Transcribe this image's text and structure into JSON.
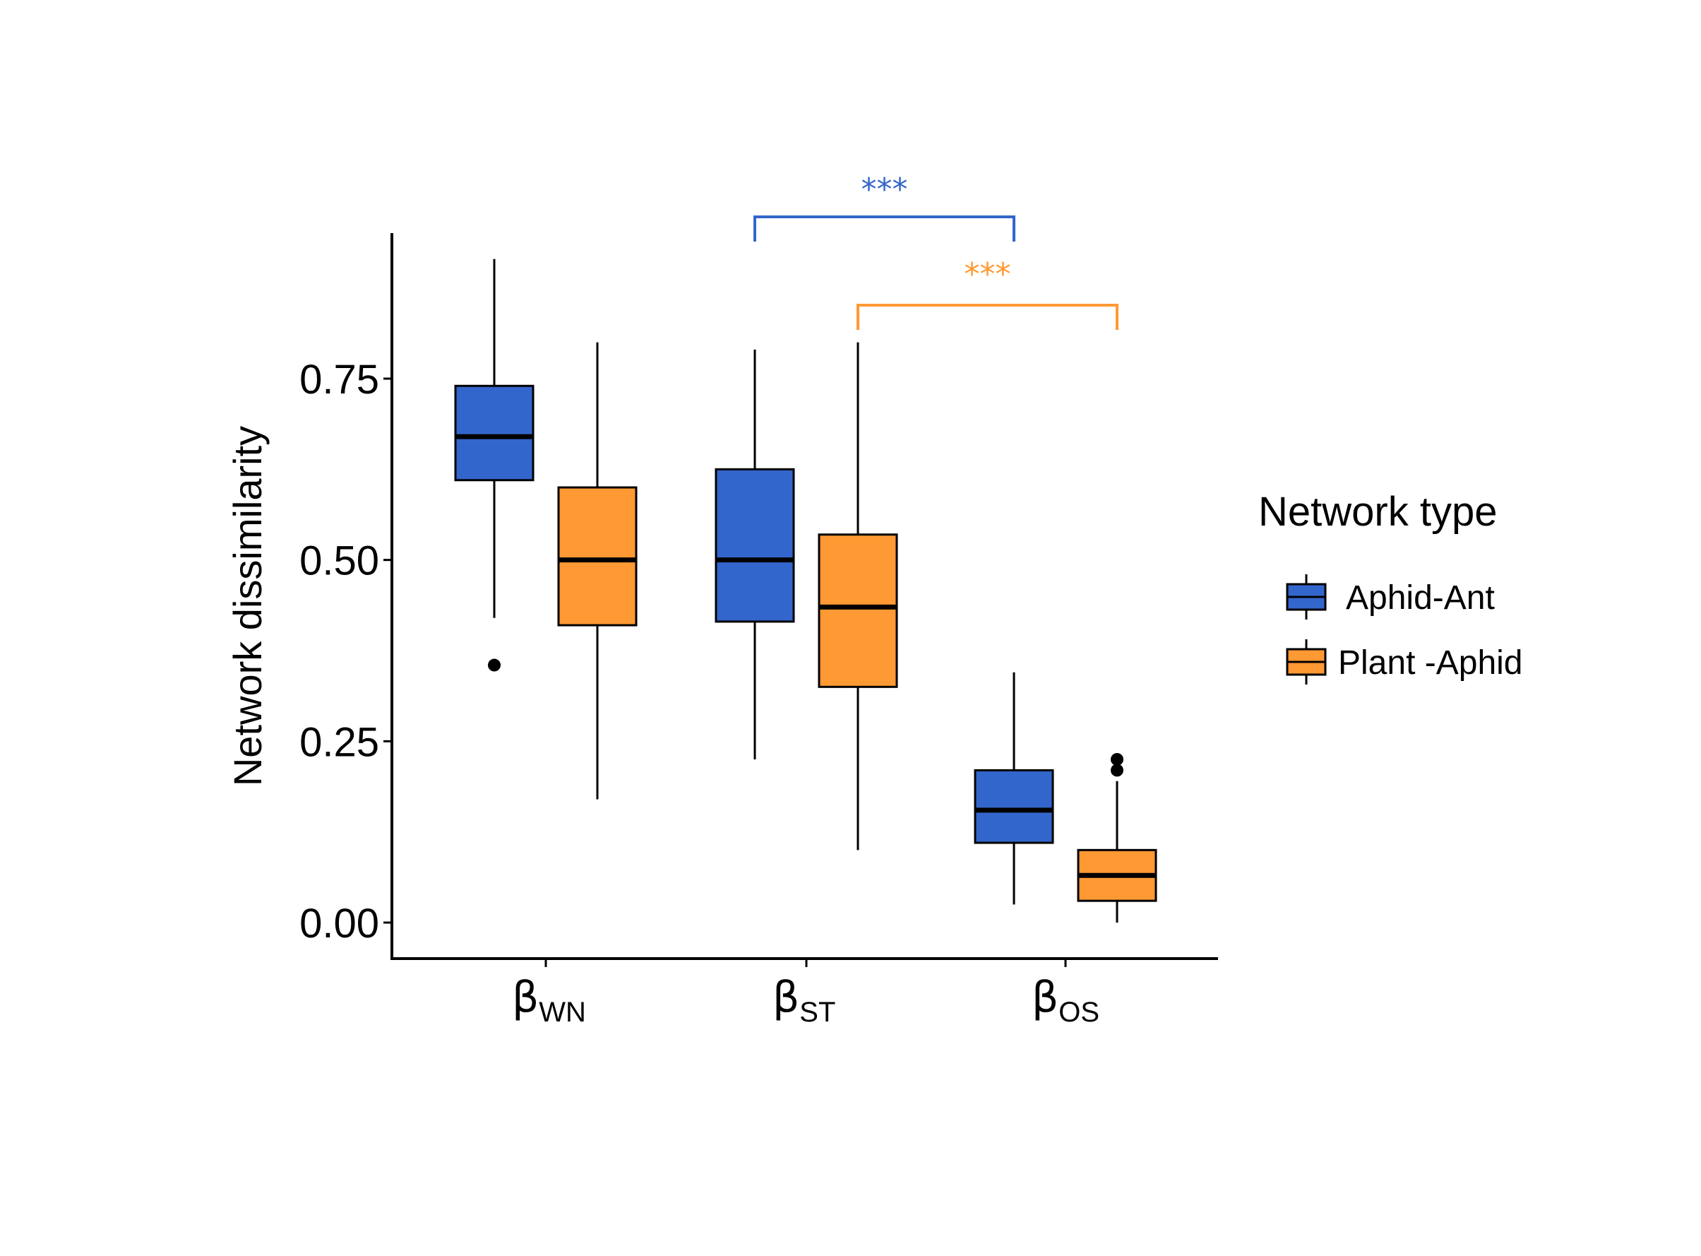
{
  "chart_data": {
    "type": "boxplot",
    "title": "",
    "xlabel": "",
    "ylabel": "Network dissimilarity",
    "ylim": [
      -0.045,
      0.96
    ],
    "yticks": [
      0.0,
      0.25,
      0.5,
      0.75
    ],
    "ytick_labels": [
      "0.00",
      "0.25",
      "0.50",
      "0.75"
    ],
    "categories": [
      {
        "symbol": "β",
        "subscript": "WN"
      },
      {
        "symbol": "β",
        "subscript": "ST"
      },
      {
        "symbol": "β",
        "subscript": "OS"
      }
    ],
    "legend": {
      "title": "Network type",
      "position": "right"
    },
    "series": [
      {
        "name": "Aphid-Ant",
        "color": "#3366cc",
        "boxes": [
          {
            "category": 0,
            "whisker_low": 0.42,
            "q1": 0.61,
            "median": 0.67,
            "q3": 0.74,
            "whisker_high": 0.915,
            "outliers": [
              0.355
            ]
          },
          {
            "category": 1,
            "whisker_low": 0.225,
            "q1": 0.415,
            "median": 0.5,
            "q3": 0.625,
            "whisker_high": 0.79,
            "outliers": []
          },
          {
            "category": 2,
            "whisker_low": 0.025,
            "q1": 0.11,
            "median": 0.155,
            "q3": 0.21,
            "whisker_high": 0.345,
            "outliers": []
          }
        ]
      },
      {
        "name": "Plant -Aphid",
        "color": "#ff9933",
        "boxes": [
          {
            "category": 0,
            "whisker_low": 0.17,
            "q1": 0.41,
            "median": 0.5,
            "q3": 0.6,
            "whisker_high": 0.8,
            "outliers": []
          },
          {
            "category": 1,
            "whisker_low": 0.1,
            "q1": 0.325,
            "median": 0.435,
            "q3": 0.535,
            "whisker_high": 0.8,
            "outliers": []
          },
          {
            "category": 2,
            "whisker_low": 0.0,
            "q1": 0.03,
            "median": 0.065,
            "q3": 0.1,
            "whisker_high": 0.195,
            "outliers": [
              0.21,
              0.225
            ]
          }
        ]
      }
    ],
    "annotations": [
      {
        "label": "***",
        "color": "#3366cc",
        "from_category": 1,
        "to_category": 2,
        "series": 0
      },
      {
        "label": "***",
        "color": "#ff9933",
        "from_category": 1,
        "to_category": 2,
        "series": 1
      }
    ]
  }
}
